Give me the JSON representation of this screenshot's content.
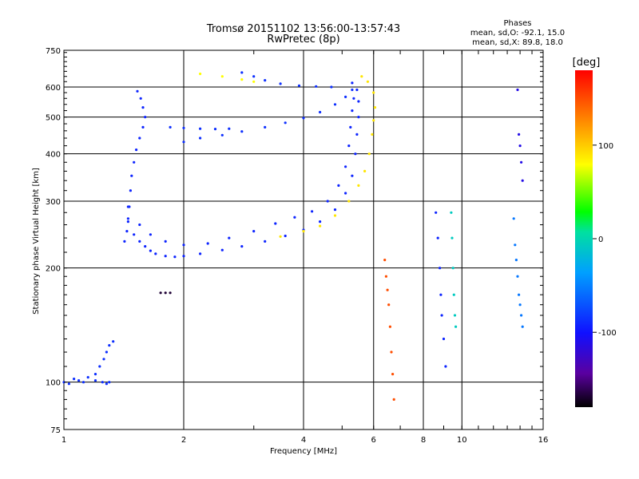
{
  "header": {
    "title_line1": "Tromsø 20151102 13:56:00-13:57:43",
    "title_line2": "RwPretec (8p)"
  },
  "stats": {
    "heading": "Phases",
    "o_line": "mean, sd,O: -92.1, 15.0",
    "x_line": "mean, sd,X: 89.8, 18.0"
  },
  "colorbar": {
    "unit": "[deg]",
    "ticks": [
      {
        "label": "100",
        "value": 100
      },
      {
        "label": "0",
        "value": 0
      },
      {
        "label": "-100",
        "value": -100
      }
    ],
    "range": [
      -180,
      180
    ]
  },
  "chart_data": {
    "type": "scatter",
    "title": "Tromsø 20151102 13:56:00-13:57:43",
    "subtitle": "RwPretec (8p)",
    "xlabel": "Frequency [MHz]",
    "ylabel": "Stationary phase Virtual Height [km]",
    "x_scale": "log",
    "y_scale": "log",
    "xlim": [
      1,
      16
    ],
    "ylim": [
      75,
      750
    ],
    "x_ticks": [
      {
        "label": "1",
        "value": 1
      },
      {
        "label": "2",
        "value": 2
      },
      {
        "label": "4",
        "value": 4
      },
      {
        "label": "6",
        "value": 6
      },
      {
        "label": "8",
        "value": 8
      },
      {
        "label": "10",
        "value": 10
      },
      {
        "label": "16",
        "value": 16
      }
    ],
    "y_ticks": [
      {
        "label": "75",
        "value": 75
      },
      {
        "label": "100",
        "value": 100
      },
      {
        "label": "200",
        "value": 200
      },
      {
        "label": "300",
        "value": 300
      },
      {
        "label": "400",
        "value": 400
      },
      {
        "label": "500",
        "value": 500
      },
      {
        "label": "600",
        "value": 600
      },
      {
        "label": "750",
        "value": 750
      }
    ],
    "grid": true,
    "color_scale": "phase [deg], black-purple-blue-cyan-green-yellow-red",
    "traces": [
      {
        "name": "",
        "phase": -95,
        "points": [
          [
            1.0,
            100
          ],
          [
            1.03,
            99
          ],
          [
            1.06,
            102
          ],
          [
            1.09,
            101
          ],
          [
            1.12,
            100
          ],
          [
            1.15,
            103
          ],
          [
            1.2,
            101
          ],
          [
            1.25,
            100
          ],
          [
            1.28,
            99
          ],
          [
            1.3,
            100
          ]
        ]
      },
      {
        "name": "",
        "phase": -95,
        "points": [
          [
            1.2,
            105
          ],
          [
            1.23,
            110
          ],
          [
            1.26,
            115
          ],
          [
            1.28,
            120
          ],
          [
            1.3,
            125
          ],
          [
            1.33,
            128
          ]
        ]
      },
      {
        "name": "",
        "phase": -100,
        "points": [
          [
            1.42,
            235
          ],
          [
            1.44,
            250
          ],
          [
            1.45,
            270
          ],
          [
            1.46,
            290
          ],
          [
            1.47,
            320
          ],
          [
            1.48,
            350
          ],
          [
            1.5,
            380
          ],
          [
            1.52,
            410
          ],
          [
            1.55,
            440
          ],
          [
            1.58,
            470
          ],
          [
            1.6,
            500
          ],
          [
            1.58,
            530
          ],
          [
            1.56,
            560
          ],
          [
            1.53,
            585
          ]
        ]
      },
      {
        "name": "",
        "phase": -100,
        "points": [
          [
            1.45,
            265
          ],
          [
            1.5,
            245
          ],
          [
            1.55,
            235
          ],
          [
            1.6,
            228
          ],
          [
            1.65,
            222
          ],
          [
            1.7,
            218
          ],
          [
            1.8,
            215
          ],
          [
            1.9,
            214
          ],
          [
            2.0,
            215
          ],
          [
            2.2,
            218
          ],
          [
            2.5,
            223
          ],
          [
            2.8,
            228
          ],
          [
            3.2,
            235
          ],
          [
            3.6,
            243
          ],
          [
            4.0,
            252
          ],
          [
            4.4,
            265
          ],
          [
            4.8,
            285
          ],
          [
            5.1,
            315
          ],
          [
            5.3,
            350
          ],
          [
            5.4,
            400
          ],
          [
            5.45,
            450
          ],
          [
            5.5,
            500
          ],
          [
            5.5,
            550
          ],
          [
            5.45,
            590
          ],
          [
            5.3,
            615
          ]
        ]
      },
      {
        "name": "",
        "phase": -100,
        "points": [
          [
            1.45,
            290
          ],
          [
            1.55,
            260
          ],
          [
            1.65,
            245
          ],
          [
            1.8,
            235
          ],
          [
            2.0,
            230
          ],
          [
            2.3,
            232
          ],
          [
            2.6,
            240
          ],
          [
            3.0,
            250
          ],
          [
            3.4,
            262
          ],
          [
            3.8,
            272
          ],
          [
            4.2,
            282
          ],
          [
            4.6,
            300
          ],
          [
            4.9,
            330
          ],
          [
            5.1,
            370
          ],
          [
            5.2,
            420
          ],
          [
            5.25,
            470
          ],
          [
            5.3,
            520
          ],
          [
            5.35,
            560
          ]
        ]
      },
      {
        "name": "",
        "phase": 90,
        "points": [
          [
            3.5,
            242
          ],
          [
            4.0,
            250
          ],
          [
            4.4,
            258
          ],
          [
            4.8,
            275
          ],
          [
            5.2,
            300
          ],
          [
            5.5,
            330
          ],
          [
            5.7,
            360
          ],
          [
            5.85,
            400
          ],
          [
            5.95,
            450
          ],
          [
            6.0,
            490
          ],
          [
            6.05,
            530
          ],
          [
            6.0,
            580
          ],
          [
            5.8,
            620
          ],
          [
            5.6,
            640
          ]
        ]
      },
      {
        "name": "",
        "phase": -95,
        "points": [
          [
            2.0,
            430
          ],
          [
            2.2,
            440
          ],
          [
            2.5,
            448
          ],
          [
            2.8,
            458
          ],
          [
            3.2,
            470
          ],
          [
            3.6,
            483
          ],
          [
            4.0,
            497
          ],
          [
            4.4,
            515
          ],
          [
            4.8,
            540
          ],
          [
            5.1,
            565
          ],
          [
            5.3,
            590
          ]
        ]
      },
      {
        "name": "",
        "phase": -95,
        "points": [
          [
            1.85,
            470
          ],
          [
            2.0,
            468
          ],
          [
            2.2,
            466
          ],
          [
            2.4,
            465
          ],
          [
            2.6,
            466
          ]
        ]
      },
      {
        "name": "",
        "phase": -95,
        "points": [
          [
            2.8,
            655
          ],
          [
            3.0,
            640
          ],
          [
            3.2,
            625
          ],
          [
            3.5,
            612
          ],
          [
            3.9,
            605
          ],
          [
            4.3,
            602
          ],
          [
            4.7,
            600
          ]
        ]
      },
      {
        "name": "",
        "phase": 80,
        "points": [
          [
            2.2,
            650
          ],
          [
            2.5,
            640
          ],
          [
            2.8,
            628
          ],
          [
            3.0,
            620
          ]
        ]
      },
      {
        "name": "",
        "phase": -170,
        "points": [
          [
            1.75,
            172
          ],
          [
            1.8,
            172
          ],
          [
            1.85,
            172
          ]
        ]
      },
      {
        "name": "",
        "phase": 150,
        "points": [
          [
            6.4,
            210
          ],
          [
            6.45,
            190
          ],
          [
            6.5,
            175
          ],
          [
            6.55,
            160
          ],
          [
            6.6,
            140
          ],
          [
            6.65,
            120
          ],
          [
            6.7,
            105
          ],
          [
            6.75,
            90
          ]
        ]
      },
      {
        "name": "",
        "phase": -100,
        "points": [
          [
            8.6,
            280
          ],
          [
            8.7,
            240
          ],
          [
            8.8,
            200
          ],
          [
            8.85,
            170
          ],
          [
            8.9,
            150
          ],
          [
            9.0,
            130
          ],
          [
            9.1,
            110
          ]
        ]
      },
      {
        "name": "",
        "phase": -20,
        "points": [
          [
            9.4,
            280
          ],
          [
            9.45,
            240
          ],
          [
            9.5,
            200
          ],
          [
            9.55,
            170
          ],
          [
            9.6,
            150
          ],
          [
            9.65,
            140
          ]
        ]
      },
      {
        "name": "",
        "phase": -120,
        "points": [
          [
            13.8,
            590
          ],
          [
            13.9,
            450
          ],
          [
            14.0,
            420
          ],
          [
            14.1,
            380
          ],
          [
            14.2,
            340
          ]
        ]
      },
      {
        "name": "",
        "phase": -60,
        "points": [
          [
            13.5,
            270
          ],
          [
            13.6,
            230
          ],
          [
            13.7,
            210
          ],
          [
            13.8,
            190
          ],
          [
            13.9,
            170
          ],
          [
            14.0,
            160
          ],
          [
            14.1,
            150
          ],
          [
            14.2,
            140
          ]
        ]
      }
    ]
  }
}
